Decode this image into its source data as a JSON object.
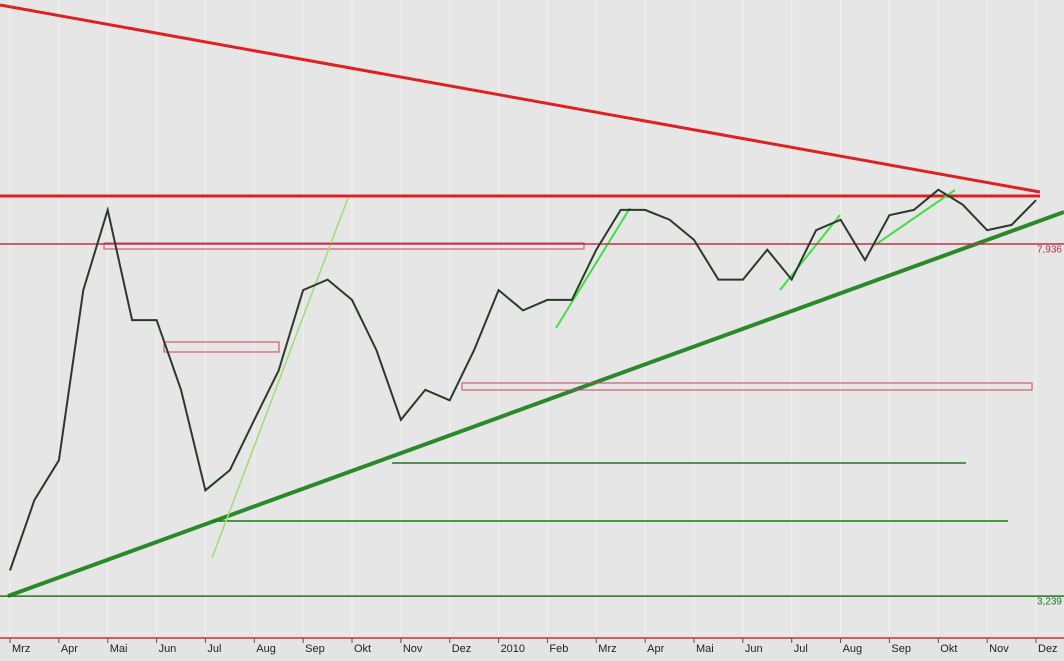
{
  "chart_data": {
    "type": "line",
    "categories": [
      "Mrz",
      null,
      "Apr",
      null,
      "Mai",
      null,
      "Jun",
      null,
      "Jul",
      null,
      "Aug",
      null,
      "Sep",
      null,
      "Okt",
      null,
      "Nov",
      null,
      "Dez",
      null,
      "2010",
      null,
      "Feb",
      null,
      "Mrz",
      null,
      "Apr",
      null,
      "Mai",
      null,
      "Jun",
      null,
      "Jul",
      null,
      "Aug",
      null,
      "Sep",
      null,
      "Okt",
      null,
      "Nov",
      null,
      "Dez"
    ],
    "series": [
      {
        "color": "#2a3a2a",
        "values": [
          3.58,
          4.52,
          5.05,
          7.32,
          8.39,
          6.92,
          6.92,
          5.99,
          4.65,
          4.92,
          5.59,
          6.25,
          7.32,
          7.46,
          7.19,
          6.52,
          5.59,
          5.99,
          5.85,
          6.52,
          7.32,
          7.05,
          7.19,
          7.19,
          7.86,
          8.39,
          8.39,
          8.26,
          7.99,
          7.46,
          7.46,
          7.86,
          7.46,
          8.12,
          8.26,
          7.72,
          8.32,
          8.39,
          8.66,
          8.46,
          8.12,
          8.19,
          8.52
        ]
      }
    ],
    "ylim": [
      2.68,
      11.19
    ],
    "hlines": [
      {
        "value": 7.936,
        "label": "7,936",
        "color": "#c0304a"
      },
      {
        "value": 3.239,
        "label": "3,239",
        "color": "#1a7a1a"
      }
    ]
  }
}
